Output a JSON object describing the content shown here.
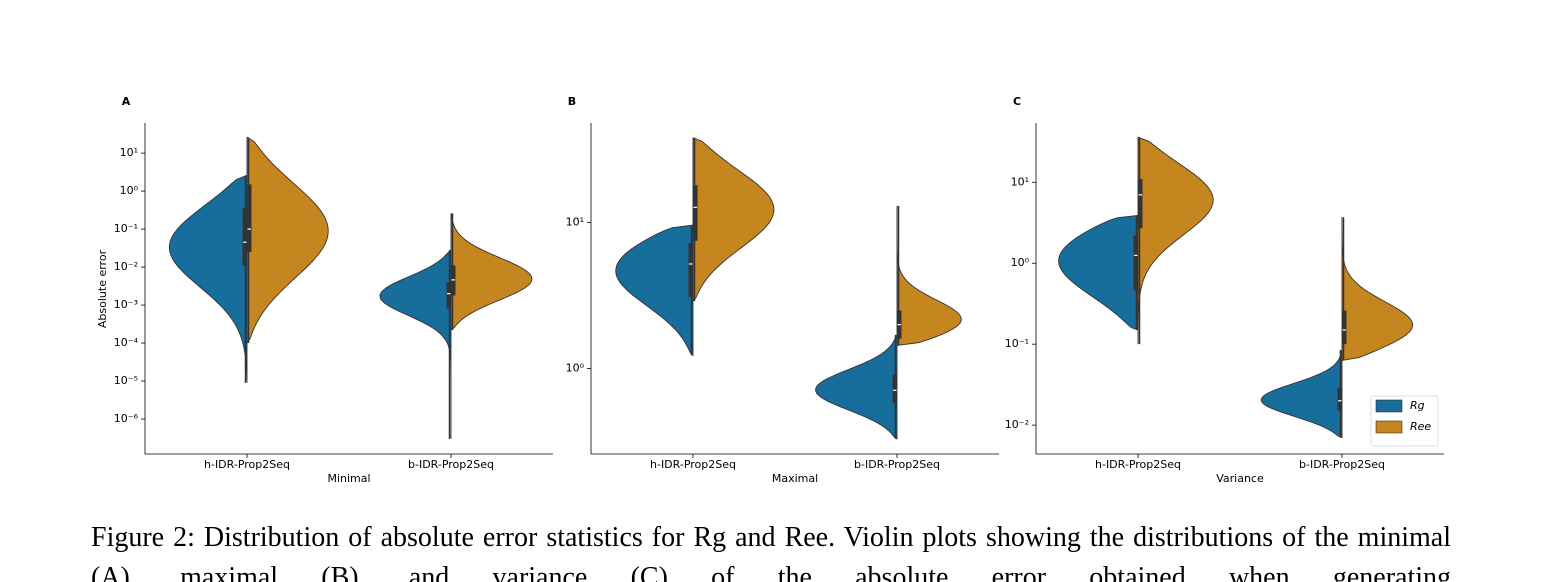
{
  "chart_data": [
    {
      "type": "violin",
      "panel_label": "A",
      "xlabel": "Minimal",
      "ylabel": "Absolute error",
      "yscale": "log",
      "categories": [
        "h-IDR-Prop2Seq",
        "b-IDR-Prop2Seq"
      ],
      "ylim": [
        1.2e-07,
        62
      ],
      "yticks": [
        {
          "value": 1e-06,
          "label": "10⁻⁶"
        },
        {
          "value": 1e-05,
          "label": "10⁻⁵"
        },
        {
          "value": 0.0001,
          "label": "10⁻⁴"
        },
        {
          "value": 0.001,
          "label": "10⁻³"
        },
        {
          "value": 0.01,
          "label": "10⁻²"
        },
        {
          "value": 0.1,
          "label": "10⁻¹"
        },
        {
          "value": 1,
          "label": "10⁰"
        },
        {
          "value": 10,
          "label": "10¹"
        }
      ],
      "series": [
        {
          "color": "#176d9c",
          "stats": [
            {
              "min": 9e-06,
              "q1": 0.011,
              "median": 0.045,
              "q3": 0.35,
              "max": 2.6
            },
            {
              "min": 3e-07,
              "q1": 0.0008,
              "median": 0.002,
              "q3": 0.004,
              "max": 0.028
            }
          ]
        },
        {
          "color": "#c5861f",
          "stats": [
            {
              "min": 0.0001,
              "q1": 0.025,
              "median": 0.1,
              "q3": 1.5,
              "max": 26
            },
            {
              "min": 0.00022,
              "q1": 0.0018,
              "median": 0.0046,
              "q3": 0.011,
              "max": 0.26
            }
          ]
        }
      ]
    },
    {
      "type": "violin",
      "panel_label": "B",
      "xlabel": "Maximal",
      "yscale": "log",
      "categories": [
        "h-IDR-Prop2Seq",
        "b-IDR-Prop2Seq"
      ],
      "ylim": [
        0.26,
        48
      ],
      "yticks": [
        {
          "value": 1,
          "label": "10⁰"
        },
        {
          "value": 10,
          "label": "10¹"
        }
      ],
      "series": [
        {
          "color": "#176d9c",
          "stats": [
            {
              "min": 1.23,
              "q1": 3.1,
              "median": 5.2,
              "q3": 7.2,
              "max": 9.6
            },
            {
              "min": 0.33,
              "q1": 0.58,
              "median": 0.71,
              "q3": 0.91,
              "max": 1.7
            }
          ]
        },
        {
          "color": "#c5861f",
          "stats": [
            {
              "min": 2.9,
              "q1": 7.5,
              "median": 12.7,
              "q3": 18,
              "max": 38
            },
            {
              "min": 1.44,
              "q1": 1.6,
              "median": 2.0,
              "q3": 2.5,
              "max": 13
            }
          ]
        }
      ]
    },
    {
      "type": "violin",
      "panel_label": "C",
      "xlabel": "Variance",
      "yscale": "log",
      "legend": "lower right",
      "categories": [
        "h-IDR-Prop2Seq",
        "b-IDR-Prop2Seq"
      ],
      "ylim": [
        0.0044,
        54
      ],
      "yticks": [
        {
          "value": 0.01,
          "label": "10⁻²"
        },
        {
          "value": 0.1,
          "label": "10⁻¹"
        },
        {
          "value": 1,
          "label": "10⁰"
        },
        {
          "value": 10,
          "label": "10¹"
        }
      ],
      "series": [
        {
          "name": "Rg",
          "color": "#176d9c",
          "stats": [
            {
              "min": 0.15,
              "q1": 0.46,
              "median": 1.25,
              "q3": 2.2,
              "max": 3.9
            },
            {
              "min": 0.007,
              "q1": 0.015,
              "median": 0.02,
              "q3": 0.029,
              "max": 0.085
            }
          ]
        },
        {
          "name": "Ree",
          "color": "#c5861f",
          "stats": [
            {
              "min": 0.1,
              "q1": 2.7,
              "median": 7,
              "q3": 11,
              "max": 36
            },
            {
              "min": 0.063,
              "q1": 0.1,
              "median": 0.15,
              "q3": 0.26,
              "max": 3.7
            }
          ]
        }
      ]
    }
  ],
  "caption": "Figure 2: Distribution of absolute error statistics for Rg and Ree. Violin plots showing the distributions of the minimal (A), maximal (B), and variance (C) of the absolute error obtained when generating"
}
